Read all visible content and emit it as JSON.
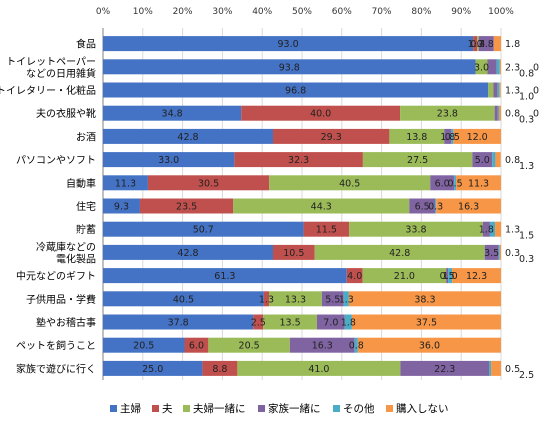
{
  "chart_data": {
    "type": "bar",
    "orientation": "horizontal",
    "stacked": "percent",
    "x_ticks": [
      "0%",
      "10%",
      "20%",
      "30%",
      "40%",
      "50%",
      "60%",
      "70%",
      "80%",
      "90%",
      "100%"
    ],
    "xlim": [
      0,
      100
    ],
    "grid": true,
    "legend_position": "bottom",
    "categories": [
      [
        "食品"
      ],
      [
        "トイレットペーパー",
        "などの日用雑貨"
      ],
      [
        "トイレタリー・化粧品"
      ],
      [
        "夫の衣服や靴"
      ],
      [
        "お酒"
      ],
      [
        "パソコンやソフト"
      ],
      [
        "自動車"
      ],
      [
        "住宅"
      ],
      [
        "貯蓄"
      ],
      [
        "冷蔵庫などの",
        "電化製品"
      ],
      [
        "中元などのギフト"
      ],
      [
        "子供用品・学費"
      ],
      [
        "塾やお稽古事"
      ],
      [
        "ペットを飼うこと"
      ],
      [
        "家族で遊びに行く"
      ]
    ],
    "series": [
      {
        "name": "主婦",
        "color": "#4472C4",
        "values": [
          93.0,
          93.8,
          96.8,
          34.8,
          42.8,
          33.0,
          11.3,
          9.3,
          50.7,
          42.8,
          61.3,
          40.5,
          37.8,
          20.5,
          25.0
        ]
      },
      {
        "name": "夫",
        "color": "#C0504D",
        "values": [
          1.0,
          0.0,
          0.0,
          40.0,
          29.3,
          32.3,
          30.5,
          23.5,
          11.5,
          10.5,
          4.0,
          1.3,
          2.5,
          6.0,
          8.8
        ]
      },
      {
        "name": "夫婦一緒に",
        "color": "#9BBB59",
        "values": [
          0.4,
          3.0,
          1.3,
          23.8,
          13.8,
          27.5,
          40.5,
          44.3,
          33.8,
          42.8,
          21.0,
          13.3,
          13.5,
          20.5,
          41.0
        ]
      },
      {
        "name": "家族一緒に",
        "color": "#8064A2",
        "values": [
          3.8,
          2.3,
          1.0,
          0.8,
          1.8,
          5.0,
          6.0,
          6.5,
          1.8,
          3.5,
          0.5,
          5.5,
          7.0,
          16.3,
          22.3
        ]
      },
      {
        "name": "その他",
        "color": "#4BACC6",
        "values": [
          0.0,
          0.8,
          0.5,
          0.3,
          0.5,
          0.8,
          0.5,
          0.3,
          1.3,
          0.3,
          1.0,
          1.3,
          1.8,
          0.8,
          0.5
        ]
      },
      {
        "name": "購入しない",
        "color": "#F79646",
        "values": [
          1.8,
          0.3,
          0.3,
          0.5,
          12.0,
          1.3,
          11.3,
          16.3,
          1.5,
          0.3,
          12.3,
          38.3,
          37.5,
          36.0,
          2.5
        ]
      }
    ],
    "data_labels": [
      [
        "93.0",
        "1.0",
        "0.4",
        "3.8",
        "",
        "1.8"
      ],
      [
        "93.8",
        "",
        "3.0",
        "2.3",
        "0.8",
        "0.3"
      ],
      [
        "96.8",
        "",
        "1.3",
        "1.0",
        "0.5",
        "0.3"
      ],
      [
        "34.8",
        "40.0",
        "23.8",
        "0.8",
        "0.3",
        "0.5"
      ],
      [
        "42.8",
        "29.3",
        "13.8",
        "1.8",
        "0.5",
        "12.0"
      ],
      [
        "33.0",
        "32.3",
        "27.5",
        "5.0",
        "0.8",
        "1.3"
      ],
      [
        "11.3",
        "30.5",
        "40.5",
        "6.0",
        "0.5",
        "11.3"
      ],
      [
        "9.3",
        "23.5",
        "44.3",
        "6.5",
        "0.3",
        "16.3"
      ],
      [
        "50.7",
        "11.5",
        "33.8",
        "1.8",
        "1.3",
        "1.5"
      ],
      [
        "42.8",
        "10.5",
        "42.8",
        "3.5",
        "0.3",
        "0.3"
      ],
      [
        "61.3",
        "4.0",
        "21.0",
        "0.5",
        "1.0",
        "12.3"
      ],
      [
        "40.5",
        "1.3",
        "13.3",
        "5.5",
        "1.3",
        "38.3"
      ],
      [
        "37.8",
        "2.5",
        "13.5",
        "7.0",
        "1.8",
        "37.5"
      ],
      [
        "20.5",
        "6.0",
        "20.5",
        "16.3",
        "0.8",
        "36.0"
      ],
      [
        "25.0",
        "8.8",
        "41.0",
        "22.3",
        "0.5",
        "2.5"
      ]
    ]
  }
}
